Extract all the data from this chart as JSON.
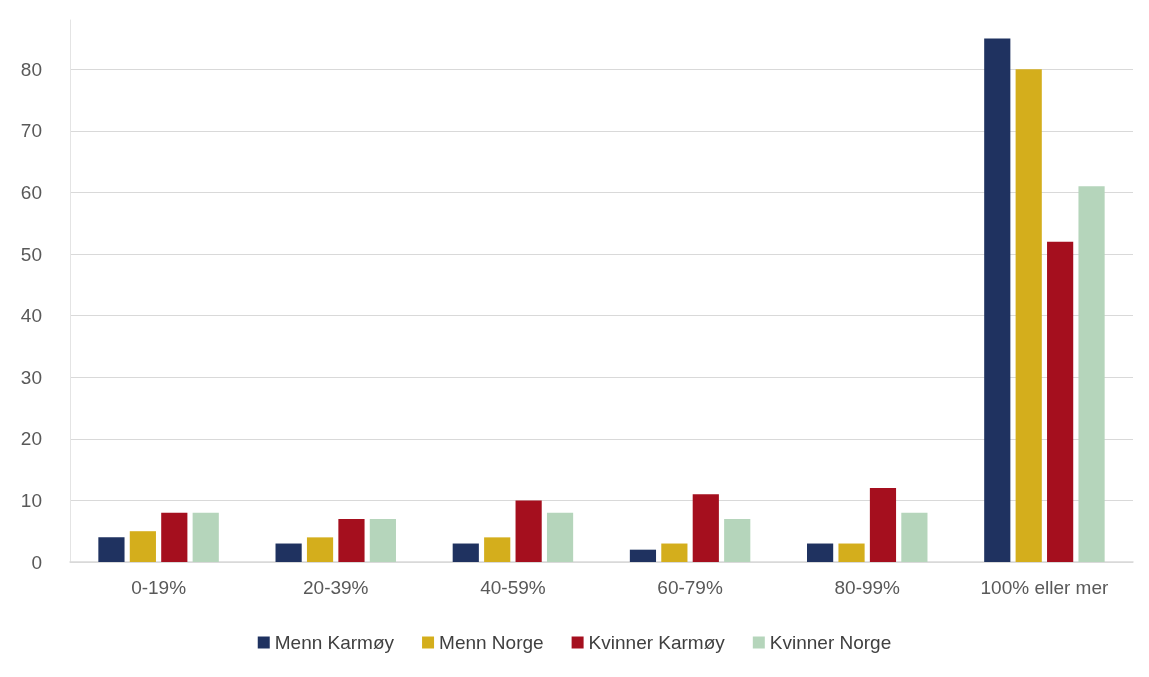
{
  "chart_data": {
    "type": "bar",
    "categories": [
      "0-19%",
      "20-39%",
      "40-59%",
      "60-79%",
      "80-99%",
      "100% eller mer"
    ],
    "series": [
      {
        "name": "Menn Karmøy",
        "color": "#1f3260",
        "values": [
          4,
          3,
          3,
          2,
          3,
          85
        ]
      },
      {
        "name": "Menn Norge",
        "color": "#d4ae1c",
        "values": [
          5,
          4,
          4,
          3,
          3,
          80
        ]
      },
      {
        "name": "Kvinner Karmøy",
        "color": "#a50f1e",
        "values": [
          8,
          7,
          10,
          11,
          12,
          52
        ]
      },
      {
        "name": "Kvinner Norge",
        "color": "#b5d5bb",
        "values": [
          8,
          7,
          8,
          7,
          8,
          61
        ]
      }
    ],
    "ylim": [
      0,
      88
    ],
    "yticks": [
      0,
      10,
      20,
      30,
      40,
      50,
      60,
      70,
      80
    ],
    "grid": "y",
    "legend": "bottom"
  }
}
